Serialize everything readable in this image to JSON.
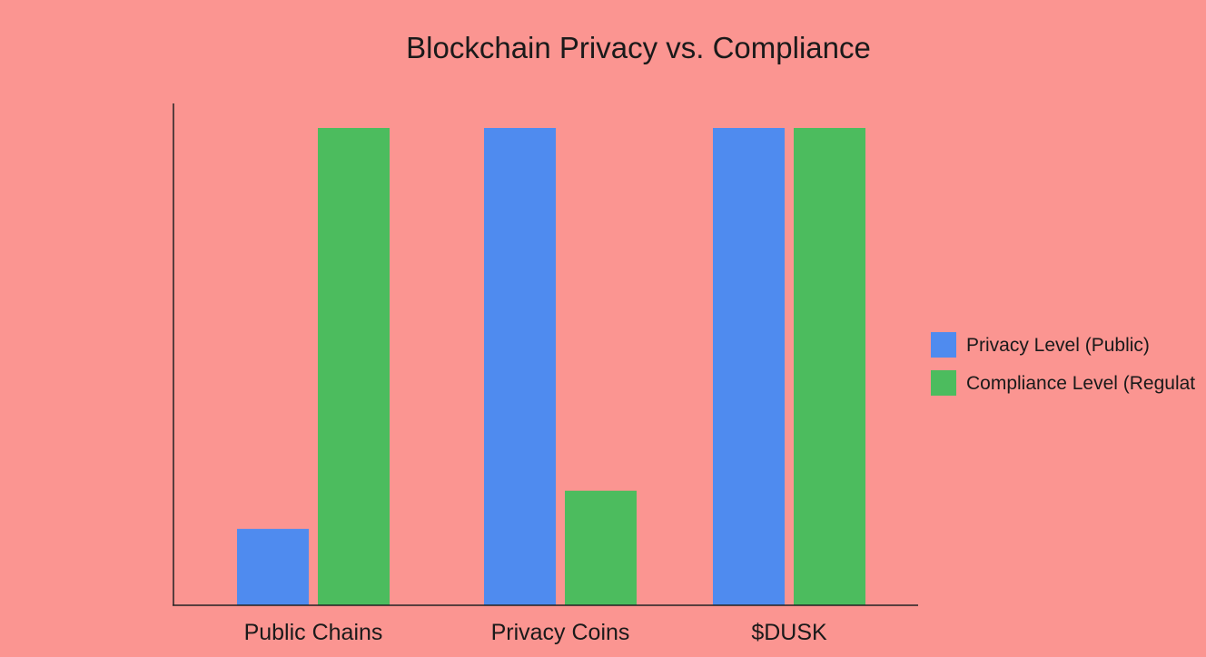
{
  "chart_data": {
    "type": "bar",
    "title": "Blockchain Privacy vs. Compliance",
    "xlabel": "",
    "ylabel": "",
    "categories": [
      "Public Chains",
      "Privacy Coins",
      "$DUSK"
    ],
    "series": [
      {
        "name": "Privacy Level (Public)",
        "values": [
          16,
          100,
          100
        ],
        "color": "#4f8bef"
      },
      {
        "name": "Compliance Level (Regulat",
        "values": [
          100,
          24,
          100
        ],
        "color": "#4cbc5e"
      }
    ],
    "ylim": [
      0,
      100
    ],
    "grid": false,
    "legend": "right",
    "background": "#fb9591",
    "y_axis_ticks_shown": false
  }
}
